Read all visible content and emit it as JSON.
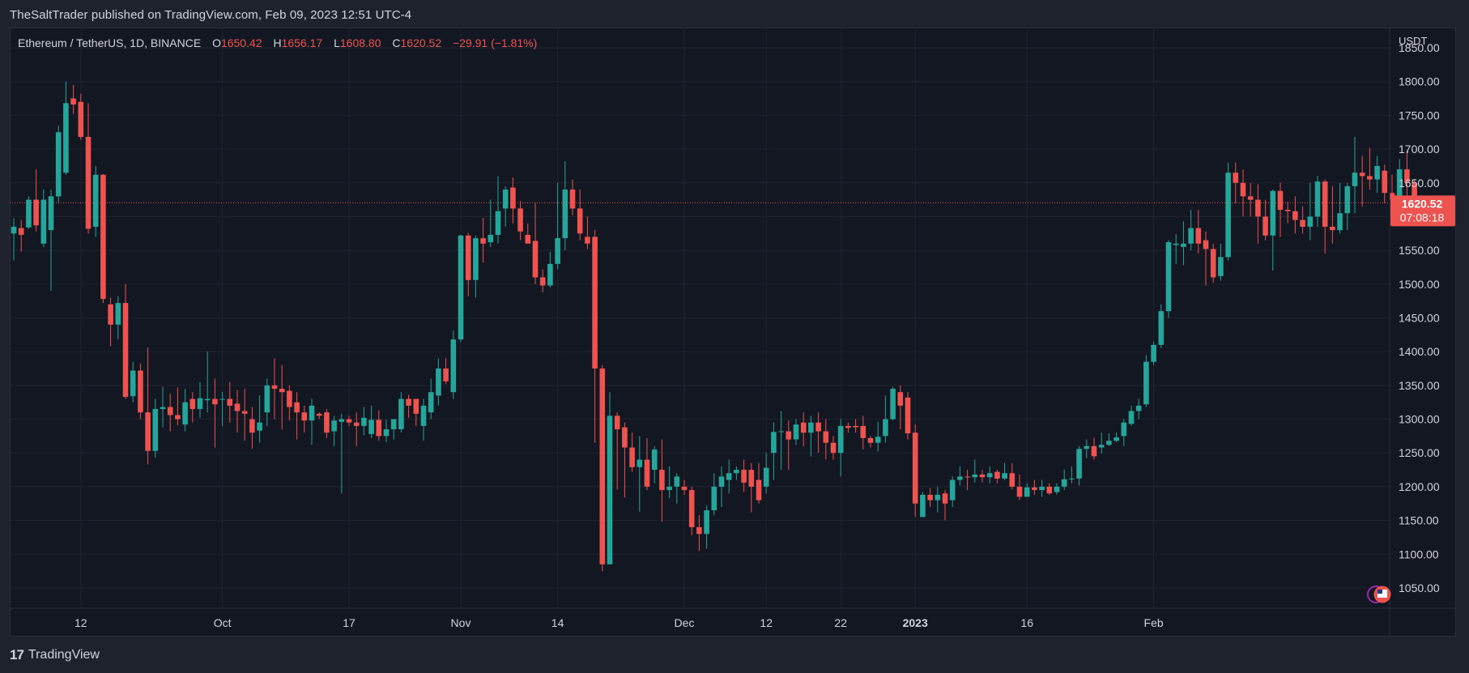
{
  "header": {
    "published": "TheSaltTrader published on TradingView.com, Feb 09, 2023 12:51 UTC-4"
  },
  "legend": {
    "symbol": "Ethereum / TetherUS, 1D, BINANCE",
    "open_label": "O",
    "open": "1650.42",
    "high_label": "H",
    "high": "1656.17",
    "low_label": "L",
    "low": "1608.80",
    "close_label": "C",
    "close": "1620.52",
    "change": "−29.91 (−1.81%)"
  },
  "footer": {
    "brand": "TradingView",
    "logo": "17"
  },
  "colors": {
    "up": "#26a69a",
    "down": "#ef5350",
    "background": "#131722",
    "grid": "#1f2330",
    "text": "#d1d4dc"
  },
  "price_badge": {
    "price": "1620.52",
    "countdown": "07:08:18"
  },
  "chart_data": {
    "type": "candlestick",
    "quote_currency": "USDT",
    "ylim": [
      1020,
      1880
    ],
    "y_ticks": [
      {
        "value": 1850,
        "label": "1850.00"
      },
      {
        "value": 1800,
        "label": "1800.00"
      },
      {
        "value": 1750,
        "label": "1750.00"
      },
      {
        "value": 1700,
        "label": "1700.00"
      },
      {
        "value": 1650,
        "label": "1650.00"
      },
      {
        "value": 1600,
        "label": "1600.00"
      },
      {
        "value": 1550,
        "label": "1550.00"
      },
      {
        "value": 1500,
        "label": "1500.00"
      },
      {
        "value": 1450,
        "label": "1450.00"
      },
      {
        "value": 1400,
        "label": "1400.00"
      },
      {
        "value": 1350,
        "label": "1350.00"
      },
      {
        "value": 1300,
        "label": "1300.00"
      },
      {
        "value": 1250,
        "label": "1250.00"
      },
      {
        "value": 1200,
        "label": "1200.00"
      },
      {
        "value": 1150,
        "label": "1150.00"
      },
      {
        "value": 1100,
        "label": "1100.00"
      },
      {
        "value": 1050,
        "label": "1050.00"
      }
    ],
    "x_ticks": [
      {
        "index": 9,
        "label": "12"
      },
      {
        "index": 28,
        "label": "Oct"
      },
      {
        "index": 45,
        "label": "17"
      },
      {
        "index": 60,
        "label": "Nov"
      },
      {
        "index": 73,
        "label": "14"
      },
      {
        "index": 90,
        "label": "Dec"
      },
      {
        "index": 101,
        "label": "12"
      },
      {
        "index": 111,
        "label": "22"
      },
      {
        "index": 121,
        "label": "2023",
        "bold": true
      },
      {
        "index": 136,
        "label": "16"
      },
      {
        "index": 153,
        "label": "Feb"
      }
    ],
    "current_price": 1620.52,
    "candles": [
      [
        1575,
        1585,
        1535,
        1598
      ],
      [
        1583,
        1573,
        1548,
        1595
      ],
      [
        1584,
        1625,
        1582,
        1630
      ],
      [
        1625,
        1587,
        1578,
        1670
      ],
      [
        1560,
        1625,
        1555,
        1640
      ],
      [
        1580,
        1630,
        1490,
        1640
      ],
      [
        1630,
        1725,
        1620,
        1735
      ],
      [
        1665,
        1768,
        1662,
        1800
      ],
      [
        1775,
        1766,
        1752,
        1795
      ],
      [
        1770,
        1718,
        1714,
        1782
      ],
      [
        1718,
        1582,
        1575,
        1768
      ],
      [
        1585,
        1662,
        1570,
        1675
      ],
      [
        1662,
        1478,
        1472,
        1663
      ],
      [
        1470,
        1440,
        1408,
        1480
      ],
      [
        1440,
        1472,
        1418,
        1482
      ],
      [
        1472,
        1333,
        1330,
        1500
      ],
      [
        1334,
        1372,
        1325,
        1385
      ],
      [
        1372,
        1310,
        1300,
        1382
      ],
      [
        1310,
        1253,
        1233,
        1406
      ],
      [
        1253,
        1315,
        1243,
        1330
      ],
      [
        1315,
        1318,
        1288,
        1348
      ],
      [
        1318,
        1306,
        1282,
        1338
      ],
      [
        1306,
        1300,
        1291,
        1347
      ],
      [
        1292,
        1325,
        1282,
        1345
      ],
      [
        1330,
        1315,
        1295,
        1340
      ],
      [
        1315,
        1331,
        1302,
        1355
      ],
      [
        1328,
        1330,
        1310,
        1400
      ],
      [
        1330,
        1322,
        1258,
        1360
      ],
      [
        1330,
        1330,
        1290,
        1340
      ],
      [
        1330,
        1320,
        1295,
        1355
      ],
      [
        1323,
        1312,
        1280,
        1343
      ],
      [
        1312,
        1308,
        1268,
        1345
      ],
      [
        1300,
        1280,
        1256,
        1318
      ],
      [
        1283,
        1295,
        1265,
        1335
      ],
      [
        1310,
        1350,
        1290,
        1360
      ],
      [
        1350,
        1345,
        1300,
        1390
      ],
      [
        1345,
        1340,
        1285,
        1380
      ],
      [
        1342,
        1318,
        1298,
        1350
      ],
      [
        1325,
        1310,
        1270,
        1340
      ],
      [
        1310,
        1298,
        1280,
        1320
      ],
      [
        1298,
        1320,
        1262,
        1330
      ],
      [
        1308,
        1305,
        1300,
        1310
      ],
      [
        1310,
        1280,
        1272,
        1315
      ],
      [
        1282,
        1298,
        1260,
        1305
      ],
      [
        1296,
        1300,
        1190,
        1308
      ],
      [
        1300,
        1295,
        1290,
        1305
      ],
      [
        1295,
        1290,
        1260,
        1310
      ],
      [
        1290,
        1302,
        1276,
        1318
      ],
      [
        1278,
        1299,
        1272,
        1320
      ],
      [
        1299,
        1275,
        1268,
        1313
      ],
      [
        1275,
        1285,
        1266,
        1299
      ],
      [
        1285,
        1300,
        1270,
        1300
      ],
      [
        1285,
        1330,
        1280,
        1340
      ],
      [
        1330,
        1320,
        1302,
        1336
      ],
      [
        1330,
        1308,
        1290,
        1330
      ],
      [
        1290,
        1320,
        1268,
        1330
      ],
      [
        1310,
        1340,
        1300,
        1360
      ],
      [
        1335,
        1375,
        1320,
        1390
      ],
      [
        1375,
        1356,
        1352,
        1390
      ],
      [
        1340,
        1418,
        1330,
        1431
      ],
      [
        1418,
        1572,
        1414,
        1573
      ],
      [
        1572,
        1506,
        1482,
        1576
      ],
      [
        1506,
        1568,
        1480,
        1572
      ],
      [
        1568,
        1560,
        1532,
        1598
      ],
      [
        1562,
        1573,
        1555,
        1625
      ],
      [
        1573,
        1608,
        1560,
        1660
      ],
      [
        1612,
        1640,
        1585,
        1645
      ],
      [
        1643,
        1612,
        1590,
        1658
      ],
      [
        1612,
        1578,
        1565,
        1623
      ],
      [
        1573,
        1560,
        1564,
        1590
      ],
      [
        1564,
        1510,
        1500,
        1620
      ],
      [
        1510,
        1498,
        1488,
        1522
      ],
      [
        1498,
        1530,
        1495,
        1548
      ],
      [
        1530,
        1568,
        1522,
        1650
      ],
      [
        1568,
        1640,
        1550,
        1682
      ],
      [
        1640,
        1612,
        1602,
        1655
      ],
      [
        1612,
        1575,
        1565,
        1640
      ],
      [
        1570,
        1560,
        1552,
        1600
      ],
      [
        1570,
        1375,
        1265,
        1580
      ],
      [
        1375,
        1085,
        1075,
        1380
      ],
      [
        1085,
        1305,
        1085,
        1340
      ],
      [
        1305,
        1285,
        1196,
        1310
      ],
      [
        1288,
        1258,
        1184,
        1295
      ],
      [
        1258,
        1229,
        1222,
        1280
      ],
      [
        1229,
        1240,
        1163,
        1275
      ],
      [
        1240,
        1200,
        1195,
        1272
      ],
      [
        1225,
        1255,
        1205,
        1260
      ],
      [
        1225,
        1195,
        1148,
        1270
      ],
      [
        1195,
        1200,
        1183,
        1230
      ],
      [
        1200,
        1215,
        1175,
        1220
      ],
      [
        1200,
        1195,
        1188,
        1210
      ],
      [
        1195,
        1140,
        1128,
        1200
      ],
      [
        1140,
        1130,
        1105,
        1158
      ],
      [
        1130,
        1165,
        1108,
        1172
      ],
      [
        1165,
        1200,
        1158,
        1220
      ],
      [
        1200,
        1215,
        1170,
        1230
      ],
      [
        1210,
        1220,
        1190,
        1240
      ],
      [
        1220,
        1225,
        1210,
        1230
      ],
      [
        1225,
        1206,
        1192,
        1240
      ],
      [
        1225,
        1200,
        1162,
        1235
      ],
      [
        1210,
        1180,
        1175,
        1235
      ],
      [
        1200,
        1228,
        1190,
        1250
      ],
      [
        1250,
        1281,
        1210,
        1295
      ],
      [
        1281,
        1282,
        1225,
        1312
      ],
      [
        1282,
        1270,
        1225,
        1298
      ],
      [
        1270,
        1292,
        1262,
        1300
      ],
      [
        1295,
        1280,
        1260,
        1310
      ],
      [
        1280,
        1295,
        1245,
        1305
      ],
      [
        1295,
        1282,
        1250,
        1310
      ],
      [
        1282,
        1265,
        1240,
        1300
      ],
      [
        1265,
        1250,
        1240,
        1275
      ],
      [
        1250,
        1290,
        1215,
        1300
      ],
      [
        1290,
        1287,
        1280,
        1295
      ],
      [
        1290,
        1288,
        1280,
        1300
      ],
      [
        1290,
        1272,
        1255,
        1305
      ],
      [
        1272,
        1265,
        1258,
        1275
      ],
      [
        1265,
        1274,
        1252,
        1296
      ],
      [
        1275,
        1300,
        1265,
        1335
      ],
      [
        1300,
        1345,
        1298,
        1348
      ],
      [
        1340,
        1320,
        1285,
        1350
      ],
      [
        1332,
        1279,
        1270,
        1340
      ],
      [
        1280,
        1175,
        1155,
        1292
      ],
      [
        1155,
        1188,
        1155,
        1192
      ],
      [
        1188,
        1180,
        1170,
        1198
      ],
      [
        1180,
        1188,
        1162,
        1200
      ],
      [
        1190,
        1175,
        1150,
        1195
      ],
      [
        1180,
        1210,
        1170,
        1215
      ],
      [
        1210,
        1215,
        1202,
        1230
      ],
      [
        1215,
        1214,
        1195,
        1225
      ],
      [
        1214,
        1218,
        1206,
        1240
      ],
      [
        1218,
        1214,
        1206,
        1225
      ],
      [
        1214,
        1220,
        1205,
        1230
      ],
      [
        1222,
        1212,
        1205,
        1225
      ],
      [
        1212,
        1220,
        1210,
        1235
      ],
      [
        1220,
        1200,
        1196,
        1235
      ],
      [
        1200,
        1185,
        1180,
        1218
      ],
      [
        1185,
        1199,
        1185,
        1205
      ],
      [
        1199,
        1195,
        1188,
        1210
      ],
      [
        1195,
        1200,
        1185,
        1210
      ],
      [
        1200,
        1190,
        1188,
        1205
      ],
      [
        1192,
        1200,
        1188,
        1205
      ],
      [
        1200,
        1211,
        1195,
        1225
      ],
      [
        1211,
        1212,
        1205,
        1230
      ],
      [
        1212,
        1256,
        1202,
        1260
      ],
      [
        1256,
        1260,
        1242,
        1270
      ],
      [
        1260,
        1245,
        1240,
        1272
      ],
      [
        1258,
        1262,
        1249,
        1280
      ],
      [
        1262,
        1268,
        1260,
        1279
      ],
      [
        1268,
        1273,
        1266,
        1280
      ],
      [
        1275,
        1295,
        1260,
        1300
      ],
      [
        1293,
        1312,
        1290,
        1320
      ],
      [
        1312,
        1320,
        1300,
        1330
      ],
      [
        1322,
        1385,
        1318,
        1395
      ],
      [
        1385,
        1410,
        1380,
        1415
      ],
      [
        1410,
        1460,
        1405,
        1470
      ],
      [
        1460,
        1562,
        1450,
        1565
      ],
      [
        1558,
        1560,
        1530,
        1574
      ],
      [
        1555,
        1560,
        1528,
        1593
      ],
      [
        1560,
        1583,
        1550,
        1610
      ],
      [
        1583,
        1560,
        1545,
        1610
      ],
      [
        1565,
        1552,
        1498,
        1578
      ],
      [
        1552,
        1510,
        1502,
        1560
      ],
      [
        1512,
        1540,
        1505,
        1560
      ],
      [
        1540,
        1665,
        1535,
        1680
      ],
      [
        1665,
        1650,
        1620,
        1680
      ],
      [
        1650,
        1630,
        1600,
        1670
      ],
      [
        1630,
        1625,
        1600,
        1650
      ],
      [
        1625,
        1600,
        1560,
        1648
      ],
      [
        1600,
        1572,
        1565,
        1625
      ],
      [
        1572,
        1638,
        1520,
        1640
      ],
      [
        1638,
        1610,
        1570,
        1650
      ],
      [
        1610,
        1608,
        1590,
        1622
      ],
      [
        1608,
        1595,
        1575,
        1630
      ],
      [
        1595,
        1585,
        1575,
        1615
      ],
      [
        1585,
        1600,
        1565,
        1650
      ],
      [
        1600,
        1652,
        1585,
        1660
      ],
      [
        1652,
        1585,
        1545,
        1655
      ],
      [
        1585,
        1580,
        1560,
        1645
      ],
      [
        1580,
        1605,
        1575,
        1650
      ],
      [
        1605,
        1645,
        1580,
        1650
      ],
      [
        1645,
        1665,
        1605,
        1718
      ],
      [
        1665,
        1660,
        1615,
        1690
      ],
      [
        1660,
        1655,
        1640,
        1702
      ],
      [
        1655,
        1675,
        1635,
        1690
      ],
      [
        1668,
        1635,
        1620,
        1677
      ],
      [
        1635,
        1625,
        1612,
        1662
      ],
      [
        1625,
        1670,
        1612,
        1685
      ],
      [
        1670,
        1650,
        1630,
        1698
      ],
      [
        1650,
        1621,
        1609,
        1656
      ]
    ]
  }
}
